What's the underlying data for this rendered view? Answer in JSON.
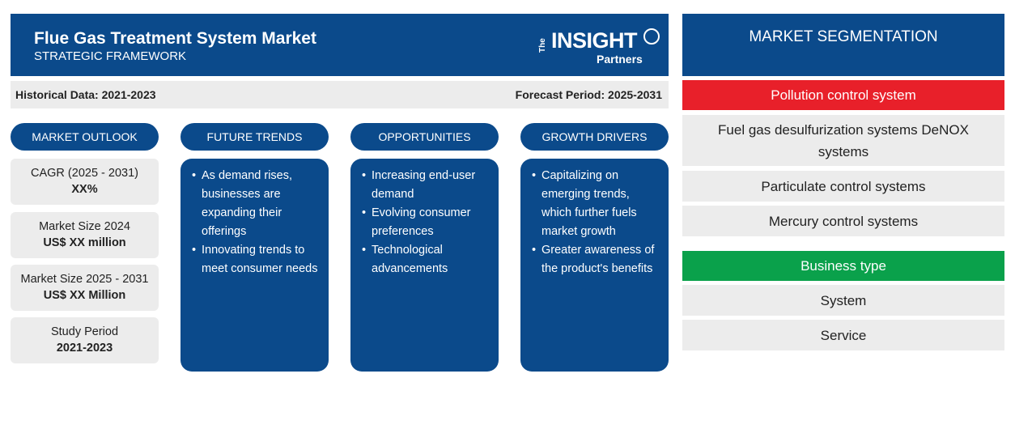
{
  "header": {
    "title": "Flue Gas Treatment System Market",
    "subtitle": "STRATEGIC FRAMEWORK",
    "logo": {
      "the": "The",
      "insight": "INSIGHT",
      "partners": "Partners"
    }
  },
  "databar": {
    "historical": "Historical Data: 2021-2023",
    "forecast": "Forecast Period: 2025-2031"
  },
  "outlook": {
    "label": "MARKET OUTLOOK",
    "stats": [
      {
        "label": "CAGR (2025 - 2031)",
        "value": "XX%"
      },
      {
        "label": "Market Size 2024",
        "value": "US$ XX million"
      },
      {
        "label": "Market Size 2025 - 2031",
        "value": "US$ XX Million"
      },
      {
        "label": "Study Period",
        "value": "2021-2023"
      }
    ]
  },
  "columns": [
    {
      "label": "FUTURE TRENDS",
      "items": [
        "As demand rises, businesses are expanding their offerings",
        "Innovating trends to meet consumer needs"
      ]
    },
    {
      "label": "OPPORTUNITIES",
      "items": [
        "Increasing end-user demand",
        "Evolving consumer preferences",
        "Technological advancements"
      ]
    },
    {
      "label": "GROWTH DRIVERS",
      "items": [
        "Capitalizing on emerging trends, which further fuels market growth",
        "Greater awareness of the product's benefits"
      ]
    }
  ],
  "segmentation": {
    "title": "MARKET SEGMENTATION",
    "categories": [
      {
        "name": "Pollution control system",
        "color": "#e8202a",
        "items": [
          "Fuel gas desulfurization systems DeNOX systems",
          "Particulate control systems",
          "Mercury control systems"
        ]
      },
      {
        "name": "Business type",
        "color": "#0aa14b",
        "items": [
          "System",
          "Service"
        ]
      }
    ]
  },
  "colors": {
    "navy": "#0b4a8b",
    "light_gray": "#ececec"
  }
}
